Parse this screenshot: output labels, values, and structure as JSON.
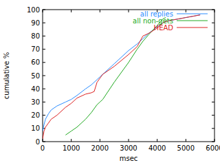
{
  "chart_data": {
    "type": "line",
    "x_label": "msec",
    "y_label": "cumulative %",
    "x": [
      0,
      50,
      100,
      200,
      300,
      500,
      800,
      1000,
      1200,
      1500,
      1700,
      1800,
      1900,
      2000,
      2100,
      2500,
      3000,
      3300,
      3500,
      3700,
      4000,
      4200,
      4300,
      4500,
      5000,
      5500
    ],
    "series": [
      {
        "name": "all replies",
        "color": "#2a8cff",
        "values": [
          8,
          13,
          17,
          21,
          24,
          27,
          30,
          32,
          35,
          40,
          43,
          45,
          47,
          49,
          51,
          59,
          69,
          74,
          78,
          82,
          87,
          90,
          91,
          92,
          94,
          96
        ]
      },
      {
        "name": "all non-gets",
        "color": "#22aa22",
        "values": [
          null,
          null,
          null,
          null,
          null,
          null,
          5,
          8,
          11,
          17,
          22,
          25,
          28,
          30,
          32,
          45,
          60,
          70,
          76,
          81,
          88,
          93,
          94,
          null,
          null,
          null
        ]
      },
      {
        "name": "HEAD",
        "color": "#dd2222",
        "values": [
          2,
          8,
          11,
          14,
          17,
          20,
          26,
          29,
          33,
          36,
          37,
          38,
          45,
          48,
          51,
          57,
          66,
          72,
          80,
          82,
          86,
          90,
          91,
          92,
          94,
          96
        ]
      }
    ],
    "xlim": [
      0,
      6000
    ],
    "xticks": [
      0,
      1000,
      2000,
      3000,
      4000,
      5000,
      6000
    ],
    "ylim": [
      0,
      100
    ],
    "yticks": [
      0,
      10,
      20,
      30,
      40,
      50,
      60,
      70,
      80,
      90,
      100
    ],
    "legend": "top-left",
    "grid": false
  }
}
